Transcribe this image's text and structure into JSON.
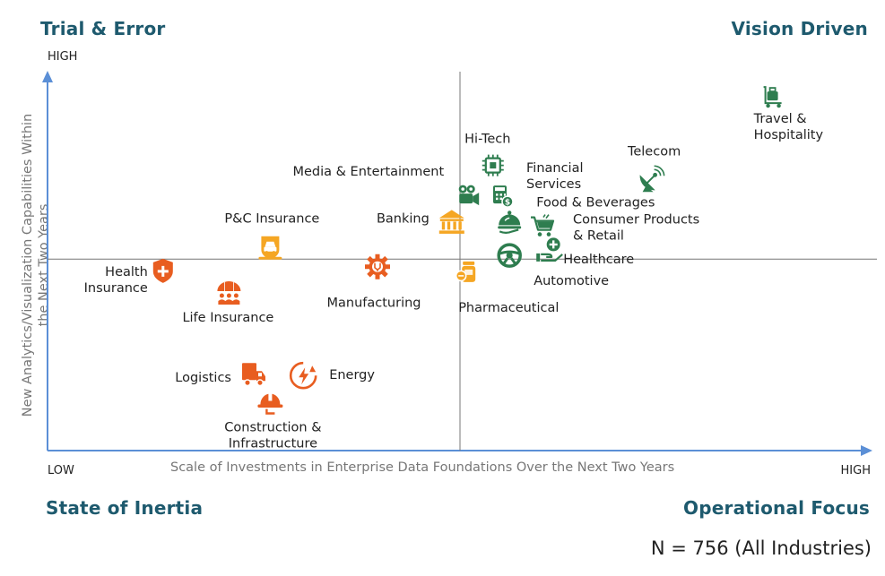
{
  "quadrants": {
    "top_left": "Trial & Error",
    "top_right": "Vision Driven",
    "bottom_left": "State of Inertia",
    "bottom_right": "Operational Focus"
  },
  "axes": {
    "y_high": "HIGH",
    "x_low": "LOW",
    "x_high": "HIGH",
    "x_title": "Scale of Investments in Enterprise Data Foundations Over the Next Two Years",
    "y_title_line1": "New Analytics/Visualization Capabilities Within",
    "y_title_line2": "the Next Two Years"
  },
  "sample_note": "N = 756 (All Industries)",
  "colors": {
    "green": "#2e7d4f",
    "orange": "#e85d20",
    "amber": "#f5a623",
    "axis": "#5b8fd6",
    "quadrant_title": "#1e5a6e"
  },
  "chart_data": {
    "type": "scatter",
    "x_label": "Scale of Investments in Enterprise Data Foundations Over the Next Two Years",
    "y_label": "New Analytics/Visualization Capabilities Within the Next Two Years",
    "xlim": [
      0,
      100
    ],
    "ylim": [
      0,
      100
    ],
    "divider": {
      "x": 50,
      "y": 51
    },
    "grid": false,
    "points": [
      {
        "name": "Travel & Hospitality",
        "label_lines": [
          "Travel &",
          "Hospitality"
        ],
        "x": 88,
        "y": 94,
        "color": "#2e7d4f",
        "icon": "luggage-cart-icon"
      },
      {
        "name": "Hi-Tech",
        "label_lines": [
          "Hi-Tech"
        ],
        "x": 54,
        "y": 76,
        "color": "#2e7d4f",
        "icon": "chip-icon"
      },
      {
        "name": "Financial Services",
        "label_lines": [
          "Financial",
          "Services"
        ],
        "x": 55,
        "y": 68,
        "color": "#2e7d4f",
        "icon": "calculator-icon"
      },
      {
        "name": "Telecom",
        "label_lines": [
          "Telecom"
        ],
        "x": 73,
        "y": 72,
        "color": "#2e7d4f",
        "icon": "satellite-dish-icon"
      },
      {
        "name": "Media & Entertainment",
        "label_lines": [
          "Media & Entertainment"
        ],
        "x": 51,
        "y": 68,
        "color": "#2e7d4f",
        "icon": "video-camera-icon"
      },
      {
        "name": "Food & Beverages",
        "label_lines": [
          "Food & Beverages"
        ],
        "x": 56,
        "y": 61,
        "color": "#2e7d4f",
        "icon": "cloche-icon"
      },
      {
        "name": "Consumer Products & Retail",
        "label_lines": [
          "Consumer Products",
          "& Retail"
        ],
        "x": 60,
        "y": 60,
        "color": "#2e7d4f",
        "icon": "shopping-cart-icon"
      },
      {
        "name": "Banking",
        "label_lines": [
          "Banking"
        ],
        "x": 49,
        "y": 61,
        "color": "#f5a623",
        "icon": "bank-icon"
      },
      {
        "name": "Healthcare",
        "label_lines": [
          "Healthcare"
        ],
        "x": 61,
        "y": 53,
        "color": "#2e7d4f",
        "icon": "medical-hand-icon"
      },
      {
        "name": "Automotive",
        "label_lines": [
          "Automotive"
        ],
        "x": 56,
        "y": 52,
        "color": "#2e7d4f",
        "icon": "steering-wheel-icon"
      },
      {
        "name": "Pharmaceutical",
        "label_lines": [
          "Pharmaceutical"
        ],
        "x": 51,
        "y": 48,
        "color": "#f5a623",
        "icon": "pill-bottle-icon"
      },
      {
        "name": "P&C Insurance",
        "label_lines": [
          "P&C Insurance"
        ],
        "x": 27,
        "y": 54,
        "color": "#f5a623",
        "icon": "car-shield-icon"
      },
      {
        "name": "Manufacturing",
        "label_lines": [
          "Manufacturing"
        ],
        "x": 40,
        "y": 49,
        "color": "#e85d20",
        "icon": "gear-icon"
      },
      {
        "name": "Health Insurance",
        "label_lines": [
          "Health",
          "Insurance"
        ],
        "x": 14,
        "y": 48,
        "color": "#e85d20",
        "icon": "shield-plus-icon"
      },
      {
        "name": "Life Insurance",
        "label_lines": [
          "Life Insurance"
        ],
        "x": 22,
        "y": 42,
        "color": "#e85d20",
        "icon": "family-umbrella-icon"
      },
      {
        "name": "Logistics",
        "label_lines": [
          "Logistics"
        ],
        "x": 25,
        "y": 20,
        "color": "#e85d20",
        "icon": "truck-icon"
      },
      {
        "name": "Energy",
        "label_lines": [
          "Energy"
        ],
        "x": 31,
        "y": 20,
        "color": "#e85d20",
        "icon": "lightning-icon"
      },
      {
        "name": "Construction & Infrastructure",
        "label_lines": [
          "Construction &",
          "Infrastructure"
        ],
        "x": 27,
        "y": 13,
        "color": "#e85d20",
        "icon": "hard-hat-icon"
      }
    ]
  }
}
